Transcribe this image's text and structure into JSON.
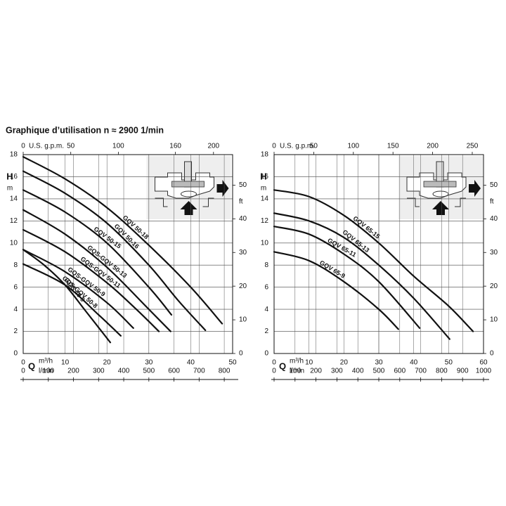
{
  "title": "Graphique d’utilisation n ≈ 2900 1/min",
  "chart_data": [
    {
      "type": "line",
      "xlabel": "Q",
      "x_unit": "m³/h",
      "x3_unit": "l/min",
      "ylabel": "H",
      "y_unit": "m",
      "y2label": "ft",
      "x2label": "U.S. g.p.m.",
      "xlim": [
        0,
        50
      ],
      "xticks": [
        0,
        10,
        20,
        30,
        40,
        50
      ],
      "x2lim": [
        0,
        220.1
      ],
      "x2ticks": [
        0,
        50,
        100,
        160,
        200
      ],
      "x3lim": [
        0,
        833.3
      ],
      "x3ticks": [
        0,
        100,
        200,
        300,
        400,
        500,
        600,
        700,
        800
      ],
      "ylim": [
        0,
        18
      ],
      "yticks": [
        0,
        2,
        4,
        6,
        8,
        10,
        12,
        14,
        16,
        18
      ],
      "y2lim": [
        0,
        59.06
      ],
      "y2ticks": [
        0,
        10,
        20,
        30,
        40,
        50
      ],
      "grid": true,
      "color": "#111111",
      "series": [
        {
          "name": "GQV 50-18",
          "x": [
            0,
            10,
            20,
            30,
            40,
            47.5
          ],
          "values": [
            17.8,
            15.8,
            13.2,
            9.8,
            6,
            2.7
          ]
        },
        {
          "name": "GQV 50-16",
          "x": [
            0,
            10,
            20,
            30,
            37,
            43.5
          ],
          "values": [
            16.5,
            14.5,
            11.8,
            8,
            4.8,
            2.1
          ]
        },
        {
          "name": "GQV 50-15",
          "x": [
            0,
            10,
            20,
            30,
            35.4
          ],
          "values": [
            14.8,
            12.8,
            10,
            6,
            3.5
          ]
        },
        {
          "name": "GQS-GQV 50-13",
          "x": [
            0,
            10,
            20,
            30,
            35.2
          ],
          "values": [
            13,
            10.8,
            7.8,
            4,
            2
          ]
        },
        {
          "name": "GQS-GQV 50-11",
          "x": [
            0,
            10,
            20,
            27,
            32.4
          ],
          "values": [
            11.2,
            9.2,
            6.4,
            4,
            2
          ]
        },
        {
          "name": "GQS-GQV 50-9",
          "x": [
            0,
            10,
            20,
            26.3
          ],
          "values": [
            9.4,
            7.4,
            4.6,
            2.3
          ]
        },
        {
          "name": "GQS-GQV 50-8",
          "x": [
            0,
            10,
            18,
            23.3
          ],
          "values": [
            8.1,
            6.2,
            3.5,
            1.6
          ]
        },
        {
          "name": "GQS 40-9",
          "x": [
            0,
            5,
            10,
            15,
            20.8
          ],
          "values": [
            9.4,
            8,
            6.2,
            3.8,
            1
          ]
        }
      ]
    },
    {
      "type": "line",
      "xlabel": "Q",
      "x_unit": "m³/h",
      "x3_unit": "l/min",
      "ylabel": "H",
      "y_unit": "m",
      "y2label": "ft",
      "x2label": "U.S. g.p.m.",
      "xlim": [
        0,
        60
      ],
      "xticks": [
        0,
        10,
        20,
        30,
        40,
        50,
        60
      ],
      "x2lim": [
        0,
        264.2
      ],
      "x2ticks": [
        0,
        50,
        100,
        150,
        200,
        250
      ],
      "x3lim": [
        0,
        1000
      ],
      "x3ticks": [
        0,
        100,
        200,
        300,
        400,
        500,
        600,
        700,
        800,
        900,
        1000
      ],
      "ylim": [
        0,
        18
      ],
      "yticks": [
        0,
        2,
        4,
        6,
        8,
        10,
        12,
        14,
        16,
        18
      ],
      "y2lim": [
        0,
        59.06
      ],
      "y2ticks": [
        0,
        10,
        20,
        30,
        40,
        50
      ],
      "grid": true,
      "color": "#111111",
      "series": [
        {
          "name": "GQV 65-15",
          "x": [
            0,
            10,
            20,
            30,
            40,
            50,
            57
          ],
          "values": [
            14.8,
            14.2,
            12.5,
            10,
            7,
            4.3,
            2
          ]
        },
        {
          "name": "GQV 65-13",
          "x": [
            0,
            10,
            20,
            30,
            40,
            50.3
          ],
          "values": [
            12.7,
            12,
            10.5,
            8,
            5,
            1.3
          ]
        },
        {
          "name": "GQV 65-11",
          "x": [
            0,
            10,
            20,
            30,
            41.7
          ],
          "values": [
            11.5,
            10.8,
            9,
            6.5,
            2.3
          ]
        },
        {
          "name": "GQV 65-9",
          "x": [
            0,
            10,
            20,
            30,
            35.6
          ],
          "values": [
            9.2,
            8.4,
            6.5,
            4,
            2.2
          ]
        }
      ]
    }
  ]
}
